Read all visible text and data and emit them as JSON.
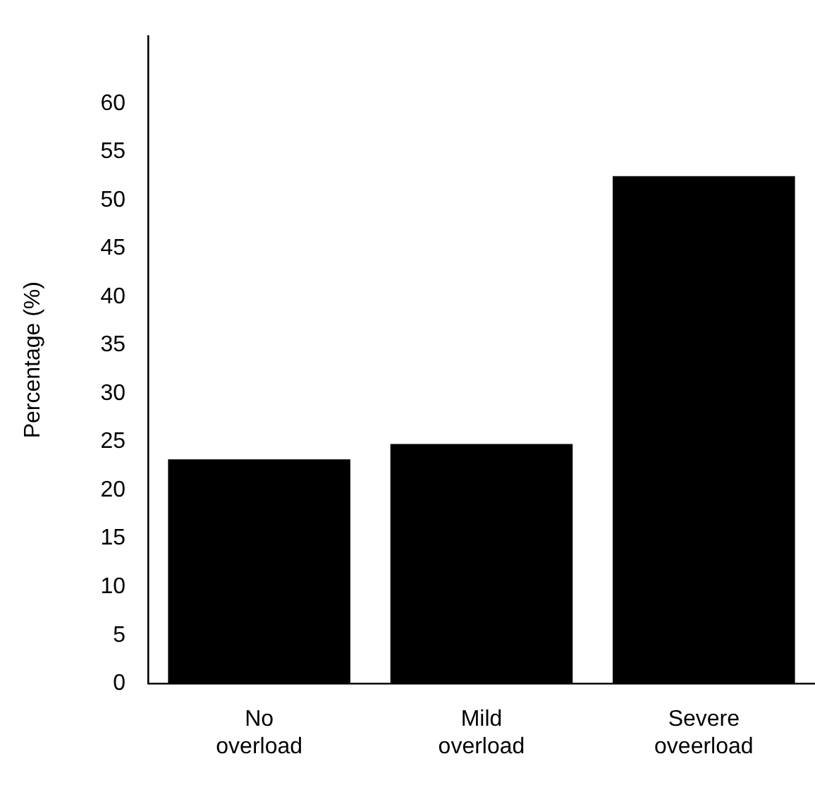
{
  "chart_data": {
    "type": "bar",
    "ylabel": "Percentage (%)",
    "categories": [
      "No overload",
      "Mild overload",
      "Severe oveerload"
    ],
    "values": [
      23.2,
      24.8,
      52.5
    ],
    "color": "#000000",
    "ylim": [
      0,
      67
    ],
    "yticks": [
      0,
      5,
      10,
      15,
      20,
      25,
      30,
      35,
      40,
      45,
      50,
      55,
      60
    ],
    "grid": false,
    "legend": false
  }
}
